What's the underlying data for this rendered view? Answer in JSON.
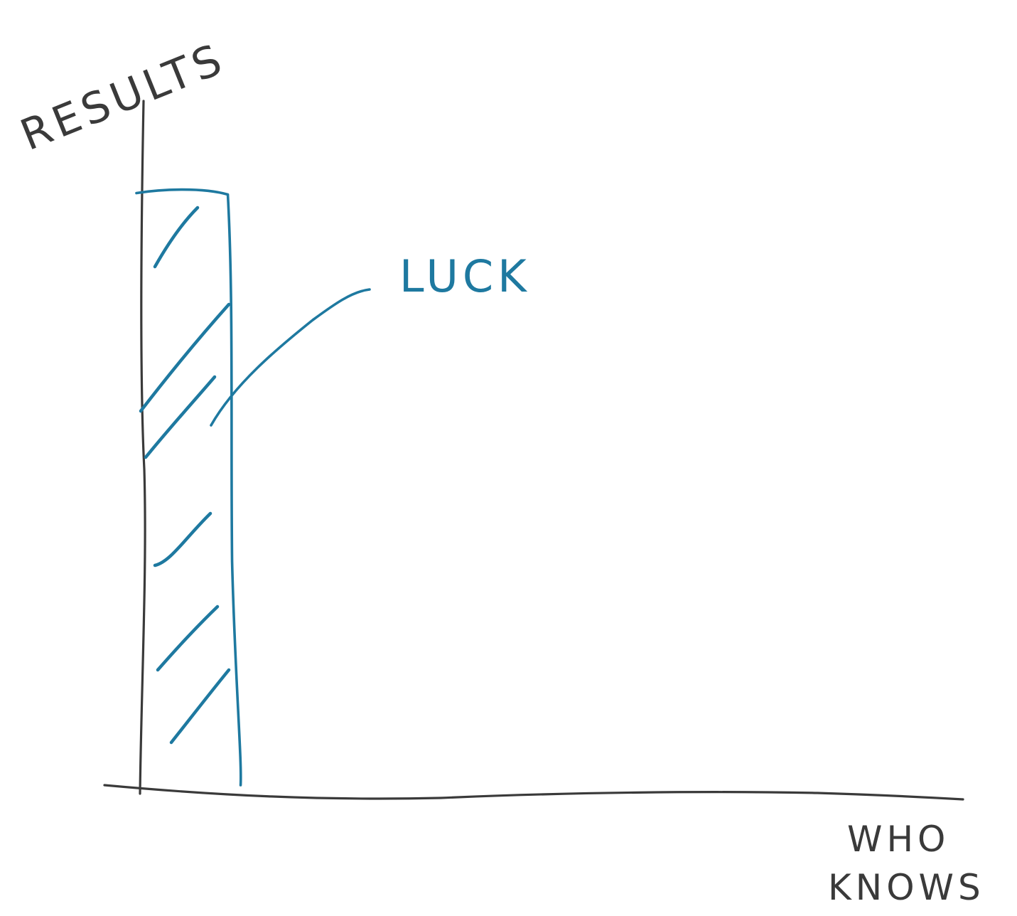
{
  "colors": {
    "ink": "#3a3a3a",
    "accent": "#1e79a0",
    "background": "#ffffff"
  },
  "chart_data": {
    "type": "bar",
    "categories": [
      ""
    ],
    "series": [
      {
        "values": [
          1
        ]
      }
    ],
    "ylabel": "RESULTS",
    "xlabel": [
      "WHO",
      "KNOWS"
    ],
    "annotations": [
      {
        "text": "LUCK",
        "target_category_index": 0
      }
    ],
    "ylim": [
      0,
      1.13
    ],
    "xlim": [
      0,
      9
    ],
    "grid": false,
    "legend": "none",
    "hatched": true
  }
}
